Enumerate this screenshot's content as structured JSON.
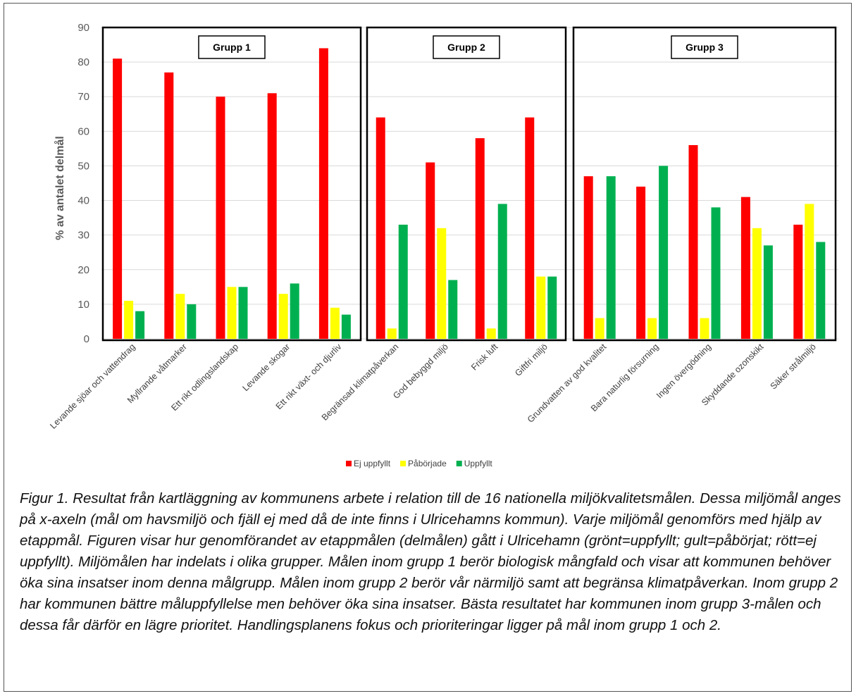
{
  "chart_data": {
    "type": "bar",
    "ylabel": "% av antalet delmål",
    "xlabel": "",
    "ylim": [
      0,
      90
    ],
    "yticks": [
      0,
      10,
      20,
      30,
      40,
      50,
      60,
      70,
      80,
      90
    ],
    "grid": true,
    "legend_position": "bottom",
    "categories": [
      "Levande sjöar och vattendrag",
      "Myllrande våtmarker",
      "Ett rikt odlingslandskap",
      "Levande skogar",
      "Ett rikt växt- och djurliv",
      "Begränsad klimatpåverkan",
      "God bebyggd miljö",
      "Frisk luft",
      "Giftfri miljö",
      "Grundvatten av god kvalitet",
      "Bara naturlig försurning",
      "Ingen övergödning",
      "Skyddande ozonskikt",
      "Säker strålmiljö"
    ],
    "series": [
      {
        "name": "Ej uppfyllt",
        "color": "#ff0000",
        "values": [
          81,
          77,
          70,
          71,
          84,
          64,
          51,
          58,
          64,
          47,
          44,
          56,
          41,
          33
        ]
      },
      {
        "name": "Påbörjade",
        "color": "#ffff00",
        "values": [
          11,
          13,
          15,
          13,
          9,
          3,
          32,
          3,
          18,
          6,
          6,
          6,
          32,
          39
        ]
      },
      {
        "name": "Uppfyllt",
        "color": "#00b050",
        "values": [
          8,
          10,
          15,
          16,
          7,
          33,
          17,
          39,
          18,
          47,
          50,
          38,
          27,
          28
        ]
      }
    ],
    "groups": [
      {
        "label": "Grupp 1",
        "start": 0,
        "end": 4
      },
      {
        "label": "Grupp 2",
        "start": 5,
        "end": 8
      },
      {
        "label": "Grupp 3",
        "start": 9,
        "end": 13
      }
    ]
  },
  "caption": "Figur 1. Resultat från kartläggning av kommunens arbete i relation till de 16 nationella miljökvalitetsmålen. Dessa miljömål anges på x-axeln (mål om havsmiljö och fjäll ej med då de inte finns i Ulricehamns kommun). Varje miljömål genomförs med hjälp av etappmål. Figuren visar hur genomförandet av etappmålen (delmålen) gått i Ulricehamn (grönt=uppfyllt; gult=påbörjat; rött=ej uppfyllt). Miljömålen har indelats i olika grupper. Målen inom grupp 1 berör biologisk mångfald och visar att kommunen behöver öka sina insatser inom denna målgrupp. Målen inom grupp 2 berör vår närmiljö samt att begränsa klimatpåverkan. Inom grupp 2 har kommunen bättre måluppfyllelse men behöver öka sina insatser. Bästa resultatet har kommunen inom grupp 3-målen och dessa får därför en lägre prioritet. Handlingsplanens fokus och prioriteringar ligger på mål inom grupp 1 och 2."
}
